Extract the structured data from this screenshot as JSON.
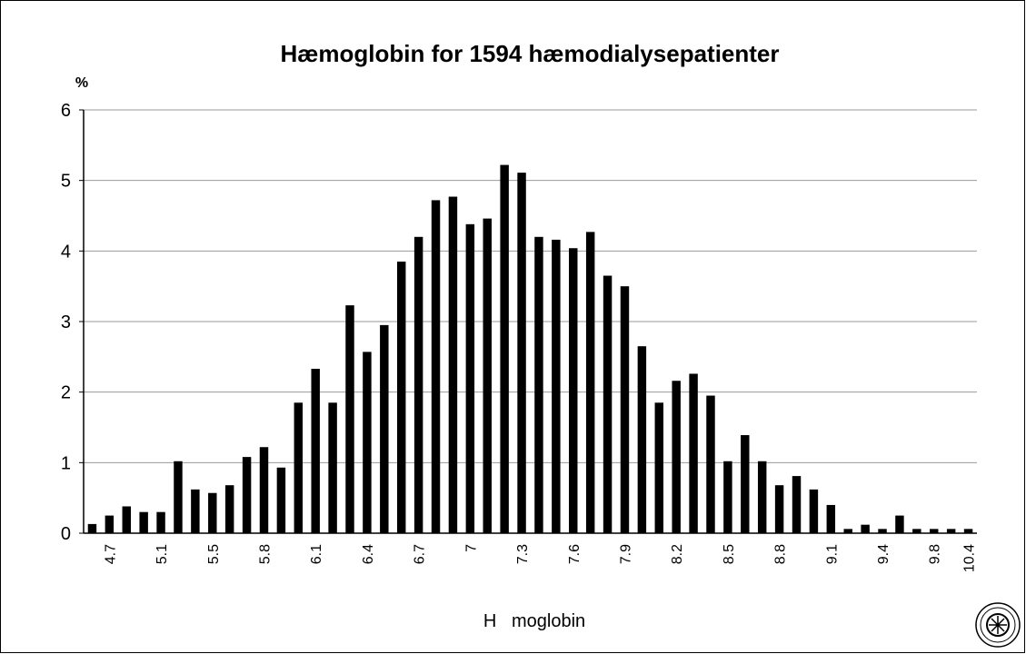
{
  "chart_data": {
    "type": "bar",
    "title": "Hæmoglobin for 1594 hæmodialysepatienter",
    "y_label": "%",
    "x_label": "H   moglobin",
    "categories": [
      null,
      "4.7",
      null,
      null,
      "5.1",
      null,
      null,
      "5.5",
      null,
      null,
      "5.8",
      null,
      null,
      "6.1",
      null,
      null,
      "6.4",
      null,
      null,
      "6.7",
      null,
      null,
      "7",
      null,
      null,
      "7.3",
      null,
      null,
      "7.6",
      null,
      null,
      "7.9",
      null,
      null,
      "8.2",
      null,
      null,
      "8.5",
      null,
      null,
      "8.8",
      null,
      null,
      "9.1",
      null,
      null,
      "9.4",
      null,
      null,
      "9.8",
      null,
      "10.4"
    ],
    "values": [
      0.13,
      0.25,
      0.38,
      0.3,
      0.3,
      1.02,
      0.62,
      0.57,
      0.68,
      1.08,
      1.22,
      0.93,
      1.85,
      2.33,
      1.85,
      3.23,
      2.57,
      2.95,
      3.85,
      4.2,
      4.72,
      4.77,
      4.38,
      4.46,
      5.22,
      5.11,
      4.2,
      4.16,
      4.04,
      4.27,
      3.65,
      3.5,
      2.65,
      1.85,
      2.16,
      2.26,
      1.95,
      1.02,
      1.39,
      1.02,
      0.68,
      0.81,
      0.62,
      0.4,
      0.06,
      0.12,
      0.06,
      0.25,
      0.06,
      0.06,
      0.06,
      0.06
    ],
    "color": "#000000",
    "ylim": [
      0,
      6
    ],
    "yticks": [
      0,
      1,
      2,
      3,
      4,
      5,
      6
    ],
    "grid": true
  }
}
